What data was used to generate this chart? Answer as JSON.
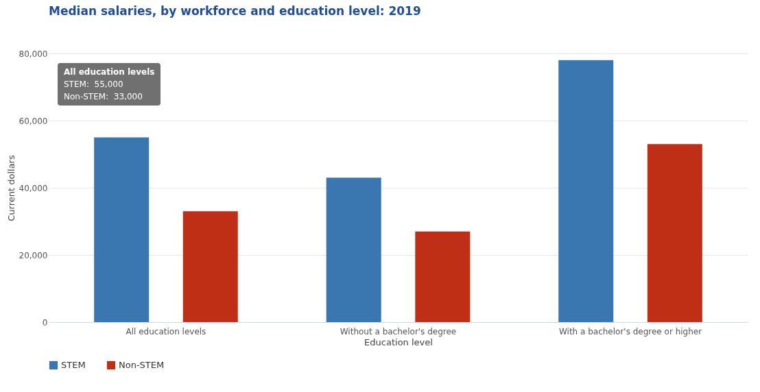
{
  "chart_data": {
    "type": "bar",
    "title": "Median salaries, by workforce and education level: 2019",
    "categories": [
      "All education levels",
      "Without a bachelor's degree",
      "With a bachelor's degree or higher"
    ],
    "series": [
      {
        "name": "STEM",
        "color": "#3a76b0",
        "values": [
          55000,
          43000,
          78000
        ]
      },
      {
        "name": "Non-STEM",
        "color": "#bf2f15",
        "values": [
          33000,
          27000,
          53000
        ]
      }
    ],
    "xlabel": "Education level",
    "ylabel": "Current dollars",
    "ylim": [
      0,
      80000
    ],
    "yticks": [
      0,
      {
        "value": 20000,
        "label": "20,000"
      },
      {
        "value": 40000,
        "label": "40,000"
      },
      {
        "value": 60000,
        "label": "60,000"
      },
      {
        "value": 80000,
        "label": "80,000"
      }
    ],
    "grid": "y",
    "legend": "bottom",
    "annotations": [
      "All education levels",
      "STEM:  55,000",
      "Non-STEM:  33,000"
    ]
  }
}
